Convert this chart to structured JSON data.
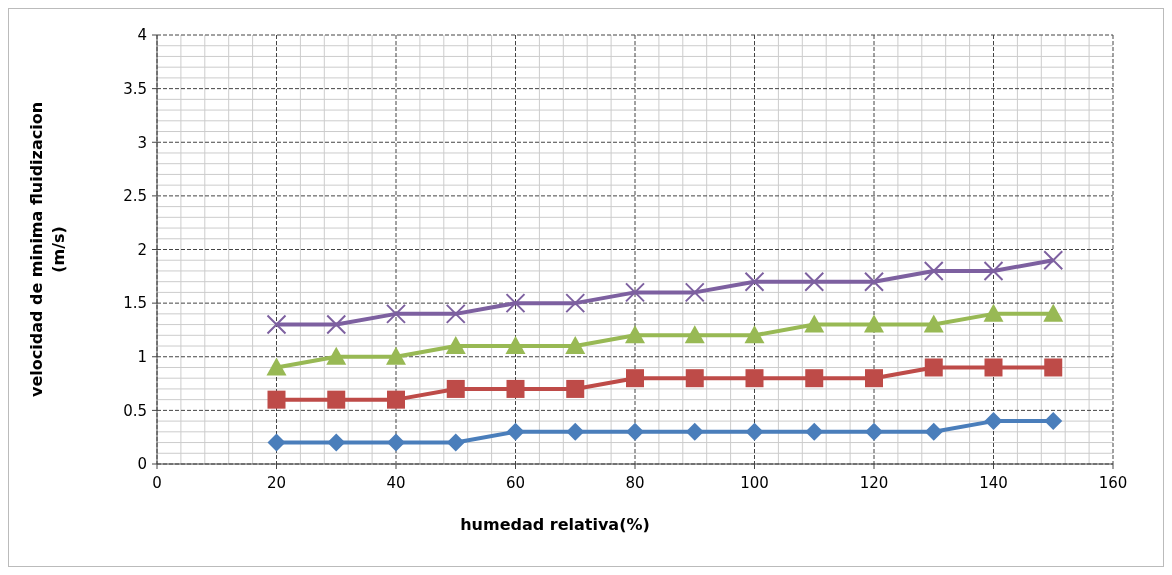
{
  "chart_data": {
    "type": "line",
    "xlabel": "humedad relativa(%)",
    "ylabel": "velocidad de minima fluidizacion (m/s)",
    "x": [
      20,
      30,
      40,
      50,
      60,
      70,
      80,
      90,
      100,
      110,
      120,
      130,
      140,
      150
    ],
    "xlim": [
      0,
      160
    ],
    "xticks": [
      0,
      20,
      40,
      60,
      80,
      100,
      120,
      140,
      160
    ],
    "ylim": [
      0,
      4
    ],
    "yticks": [
      0,
      0.5,
      1,
      1.5,
      2,
      2.5,
      3,
      3.5,
      4
    ],
    "grid": true,
    "line_style": "solid",
    "series": [
      {
        "color": "#4a7ebb",
        "marker": "diamond",
        "values": [
          0.2,
          0.2,
          0.2,
          0.2,
          0.3,
          0.3,
          0.3,
          0.3,
          0.3,
          0.3,
          0.3,
          0.3,
          0.4,
          0.4
        ]
      },
      {
        "color": "#be4b48",
        "marker": "square",
        "values": [
          0.6,
          0.6,
          0.6,
          0.7,
          0.7,
          0.7,
          0.8,
          0.8,
          0.8,
          0.8,
          0.8,
          0.9,
          0.9,
          0.9
        ]
      },
      {
        "color": "#98b954",
        "marker": "triangle",
        "values": [
          0.9,
          1.0,
          1.0,
          1.1,
          1.1,
          1.1,
          1.2,
          1.2,
          1.2,
          1.3,
          1.3,
          1.3,
          1.4,
          1.4
        ]
      },
      {
        "color": "#7d60a0",
        "marker": "cross",
        "values": [
          1.3,
          1.3,
          1.4,
          1.4,
          1.5,
          1.5,
          1.6,
          1.6,
          1.7,
          1.7,
          1.7,
          1.8,
          1.8,
          1.9
        ]
      }
    ]
  }
}
